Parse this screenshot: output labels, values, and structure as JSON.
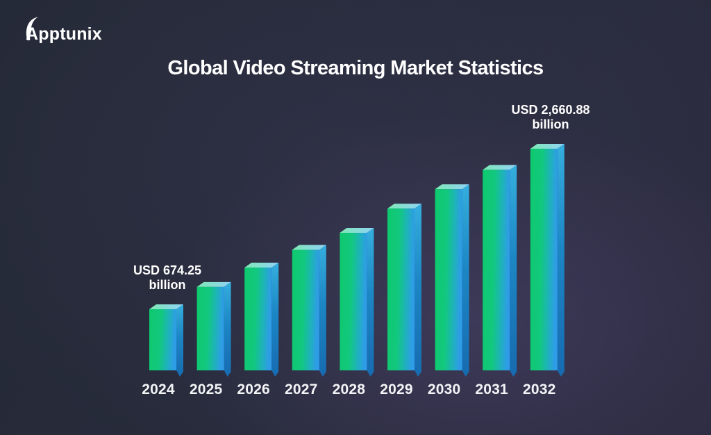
{
  "brand": {
    "name": "Apptunix"
  },
  "title": "Global Video Streaming Market Statistics",
  "chart_data": {
    "type": "bar",
    "title": "Global Video Streaming Market Statistics",
    "unit": "USD billion",
    "categories": [
      "2024",
      "2025",
      "2026",
      "2027",
      "2028",
      "2029",
      "2030",
      "2031",
      "2032"
    ],
    "values": [
      674.25,
      950,
      1190,
      1410,
      1620,
      1920,
      2160,
      2400,
      2660.88
    ],
    "values_note": "Only the 2024 and 2032 bars carry printed values; intermediate values are estimated from bar heights",
    "annotations": [
      {
        "category": "2024",
        "line1": "USD 674.25",
        "line2": "billion"
      },
      {
        "category": "2032",
        "line1": "USD 2,660.88",
        "line2": "billion"
      }
    ],
    "xlabel": "",
    "ylabel": "",
    "axes_visible": false,
    "gridlines": false,
    "legend": "none",
    "colors": {
      "bar_front_green": "#0ec96e",
      "bar_front_teal": "#1cb6b2",
      "bar_front_blue": "#2f9ce8",
      "bar_top_light_green": "#7fe8b5",
      "bar_top_light_blue": "#90d2f5",
      "bar_side_top": "#35aede",
      "bar_side_mid": "#1c86c4",
      "bar_side_bottom": "#176bb0",
      "background_base": "#242936",
      "background_glow": "#4a3f66",
      "text": "#ffffff"
    }
  }
}
